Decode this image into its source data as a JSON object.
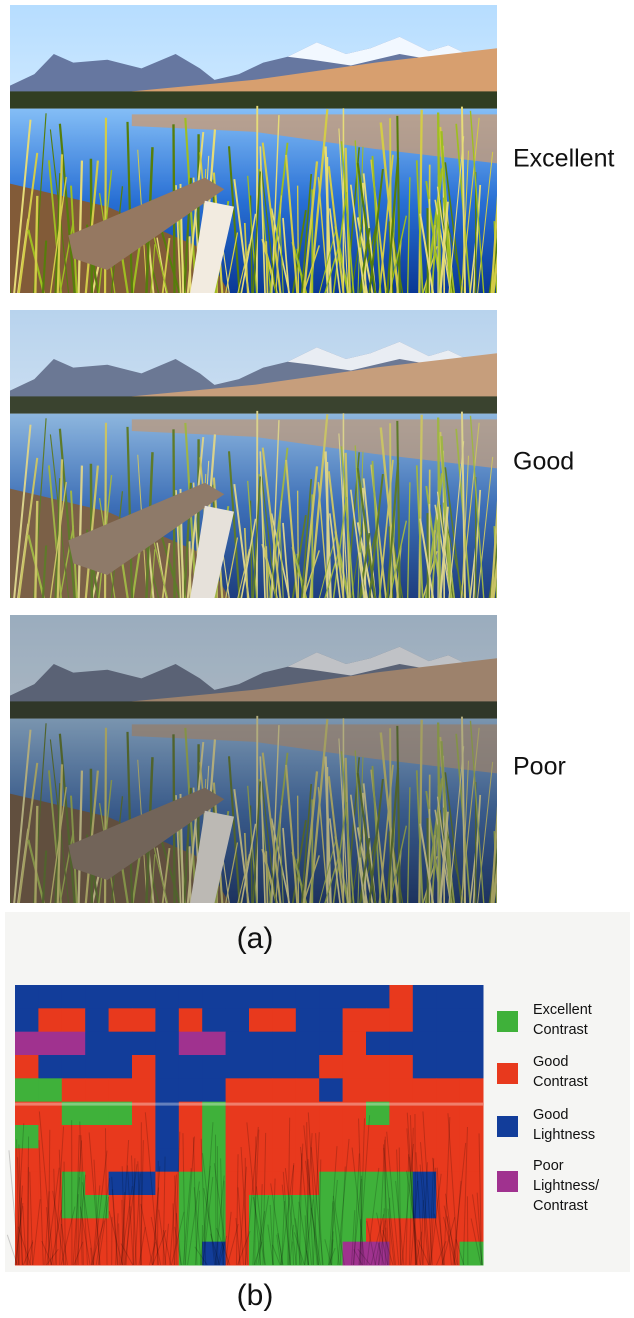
{
  "panel_a": {
    "rows": [
      {
        "label": "Excellent"
      },
      {
        "label": "Good"
      },
      {
        "label": "Poor"
      }
    ],
    "caption": "(a)"
  },
  "panel_b": {
    "legend": [
      {
        "lines": [
          "Excellent",
          "Contrast"
        ],
        "color": "#3fb13a"
      },
      {
        "lines": [
          "Good",
          "Contrast"
        ],
        "color": "#e8391d"
      },
      {
        "lines": [
          "Good",
          "Lightness"
        ],
        "color": "#123d9a"
      },
      {
        "lines": [
          "Poor",
          "Lightness/",
          "Contrast"
        ],
        "color": "#a0328f"
      }
    ],
    "caption": "(b)"
  }
}
